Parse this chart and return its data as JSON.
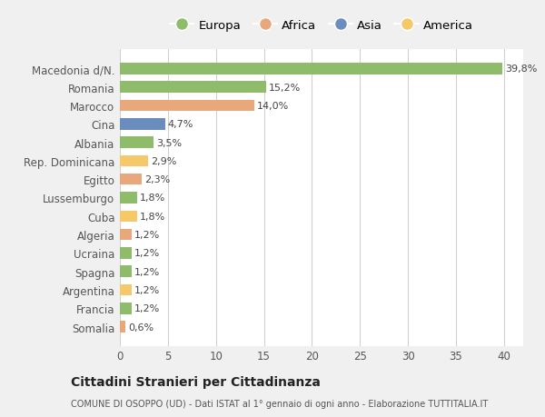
{
  "categories": [
    "Somalia",
    "Francia",
    "Argentina",
    "Spagna",
    "Ucraina",
    "Algeria",
    "Cuba",
    "Lussemburgo",
    "Egitto",
    "Rep. Dominicana",
    "Albania",
    "Cina",
    "Marocco",
    "Romania",
    "Macedonia d/N."
  ],
  "values": [
    0.6,
    1.2,
    1.2,
    1.2,
    1.2,
    1.2,
    1.8,
    1.8,
    2.3,
    2.9,
    3.5,
    4.7,
    14.0,
    15.2,
    39.8
  ],
  "labels": [
    "0,6%",
    "1,2%",
    "1,2%",
    "1,2%",
    "1,2%",
    "1,2%",
    "1,8%",
    "1,8%",
    "2,3%",
    "2,9%",
    "3,5%",
    "4,7%",
    "14,0%",
    "15,2%",
    "39,8%"
  ],
  "colors": [
    "#E8A87C",
    "#8FBC6A",
    "#F5C96A",
    "#8FBC6A",
    "#8FBC6A",
    "#E8A87C",
    "#F5C96A",
    "#8FBC6A",
    "#E8A87C",
    "#F5C96A",
    "#8FBC6A",
    "#6B8DBD",
    "#E8A87C",
    "#8FBC6A",
    "#8FBC6A"
  ],
  "legend_labels": [
    "Europa",
    "Africa",
    "Asia",
    "America"
  ],
  "legend_colors": [
    "#8FBC6A",
    "#E8A87C",
    "#6B8DBD",
    "#F5C96A"
  ],
  "title": "Cittadini Stranieri per Cittadinanza",
  "subtitle": "COMUNE DI OSOPPO (UD) - Dati ISTAT al 1° gennaio di ogni anno - Elaborazione TUTTITALIA.IT",
  "xlim": [
    0,
    42
  ],
  "xticks": [
    0,
    5,
    10,
    15,
    20,
    25,
    30,
    35,
    40
  ],
  "bg_color": "#f0f0f0",
  "bar_bg_color": "#ffffff",
  "grid_color": "#d0d0d0"
}
